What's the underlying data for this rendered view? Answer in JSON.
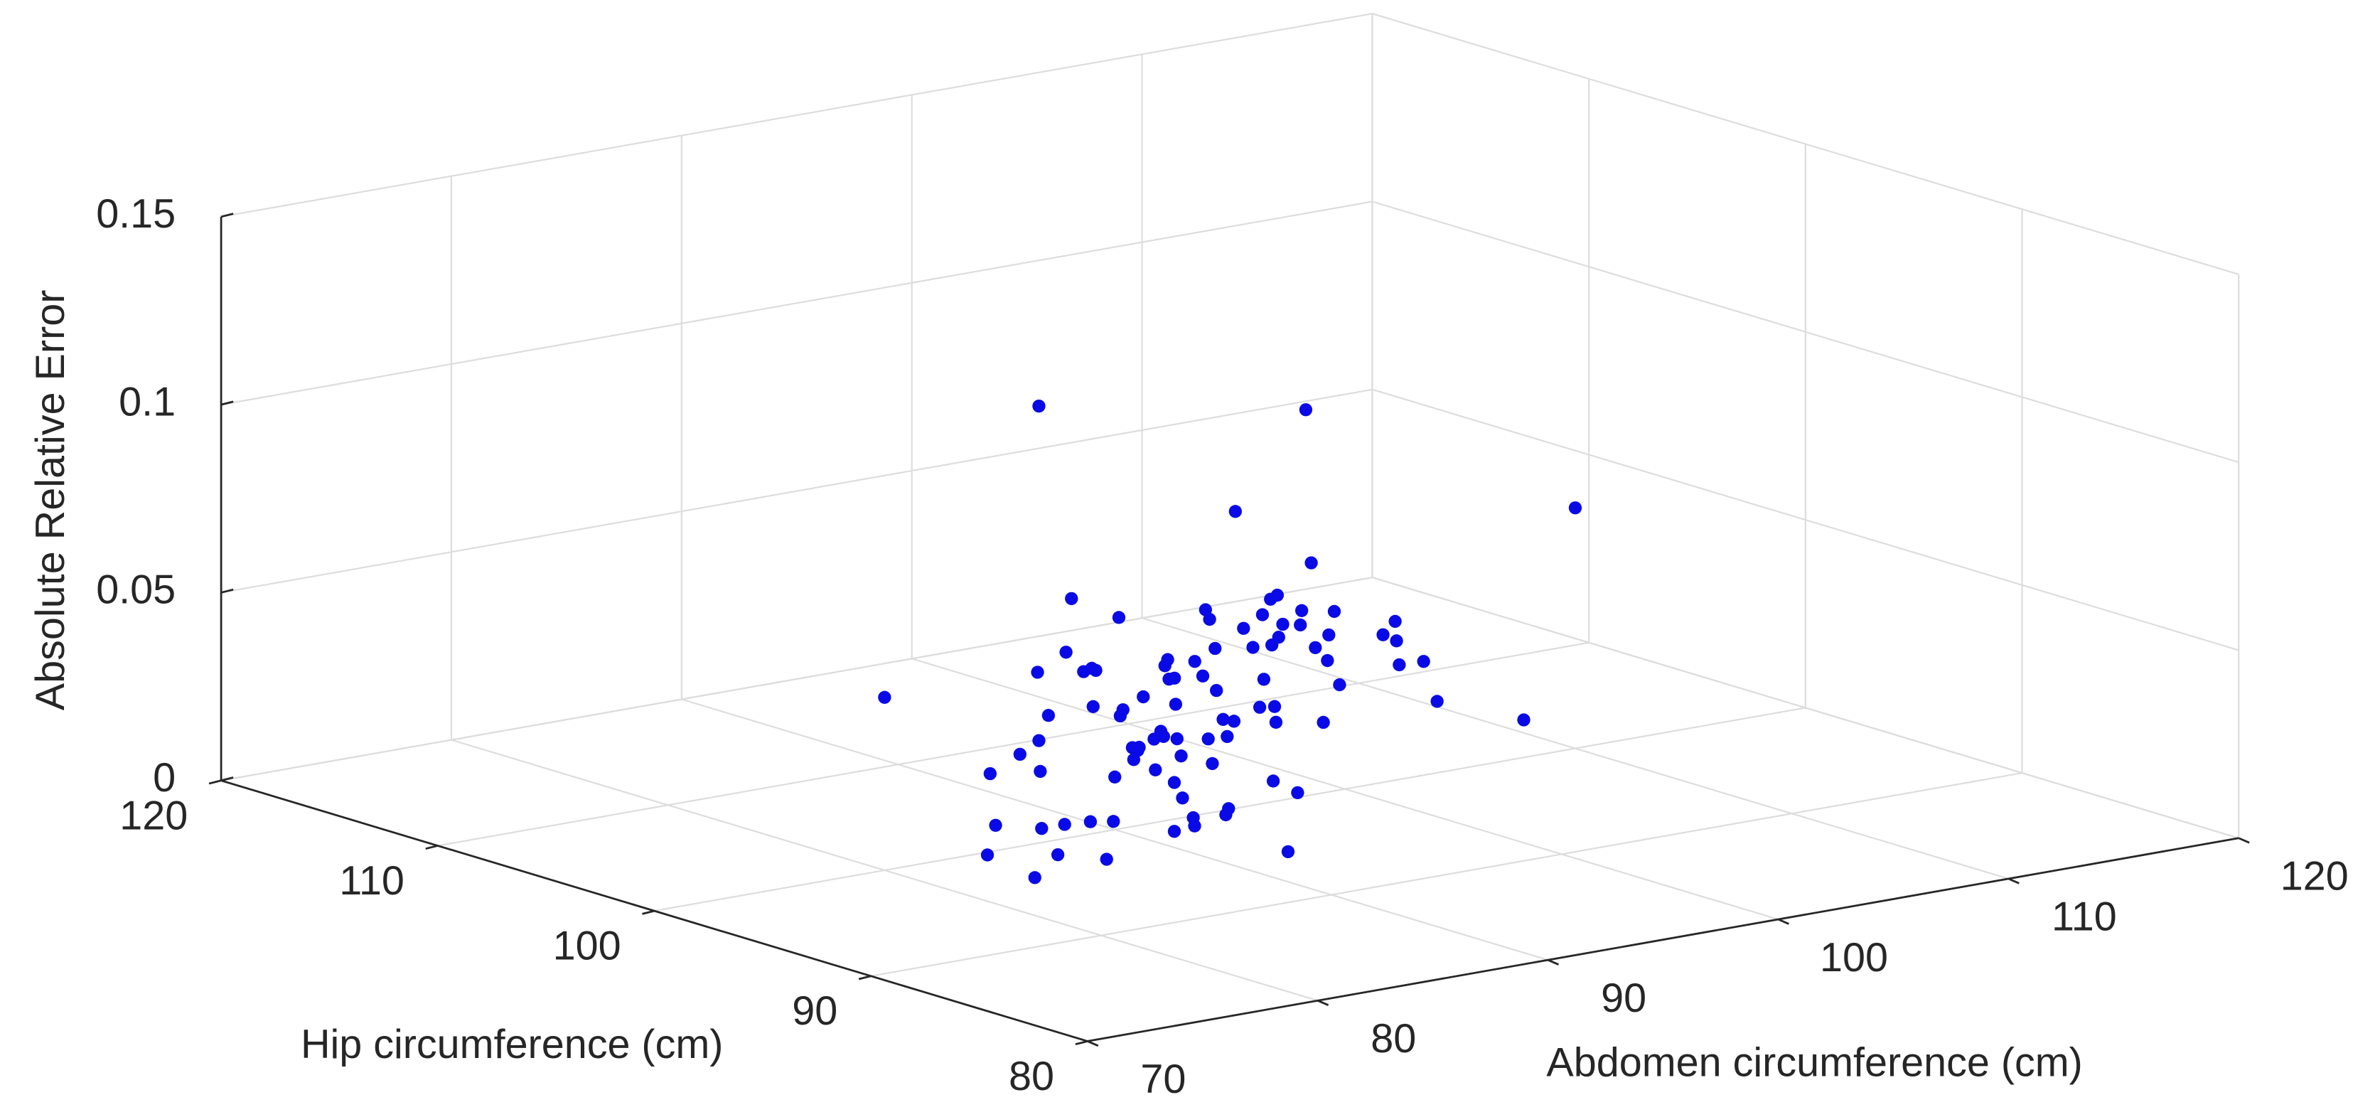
{
  "chart_data": {
    "type": "scatter3d",
    "xlabel": "Abdomen circumference (cm)",
    "ylabel": "Hip circumference (cm)",
    "zlabel": "Absolute Relative Error",
    "color": "#0a0ae6",
    "grid": true,
    "xlim": [
      70,
      120
    ],
    "xticks": [
      70,
      80,
      90,
      100,
      110,
      120
    ],
    "ylim": [
      80,
      120
    ],
    "yticks": [
      80,
      90,
      100,
      110,
      120
    ],
    "zlim": [
      0,
      0.15
    ],
    "zticks": [
      0,
      0.05,
      0.1,
      0.15
    ],
    "x": [
      85,
      88,
      90,
      92,
      94,
      96,
      98,
      100,
      102,
      104,
      87,
      89,
      91,
      93,
      95,
      97,
      99,
      101,
      103,
      105,
      80,
      82,
      84,
      86,
      88,
      90,
      92,
      94,
      96,
      98,
      83,
      86,
      89,
      92,
      95,
      98,
      101,
      104,
      107,
      110,
      78,
      81,
      84,
      87,
      90,
      93,
      96,
      99,
      102,
      105,
      91,
      93,
      95,
      89,
      87,
      97,
      99,
      85,
      84,
      100,
      106,
      108,
      112,
      76,
      79,
      94,
      92,
      90,
      88,
      86,
      95,
      97,
      93,
      91,
      101,
      103,
      98,
      96,
      94,
      92,
      82,
      84,
      88,
      90,
      100,
      104,
      108,
      110,
      83,
      96,
      82,
      110,
      103,
      80,
      104
    ],
    "y": [
      97,
      96,
      101,
      99,
      104,
      100,
      103,
      106,
      105,
      108,
      95,
      99,
      98,
      103,
      101,
      105,
      102,
      107,
      104,
      110,
      92,
      95,
      94,
      98,
      97,
      100,
      103,
      99,
      102,
      106,
      96,
      93,
      100,
      97,
      104,
      101,
      108,
      105,
      109,
      112,
      93,
      94,
      97,
      96,
      102,
      98,
      106,
      101,
      110,
      103,
      100,
      96,
      98,
      102,
      94,
      99,
      104,
      91,
      98,
      101,
      104,
      106,
      111,
      91,
      92,
      97,
      101,
      95,
      99,
      93,
      103,
      100,
      99,
      97,
      105,
      107,
      104,
      96,
      102,
      100,
      97,
      90,
      95,
      92,
      102,
      100,
      109,
      107,
      94,
      99,
      95,
      100,
      105,
      100,
      96
    ],
    "z": [
      0.012,
      0.025,
      0.031,
      0.008,
      0.019,
      0.042,
      0.015,
      0.027,
      0.033,
      0.011,
      0.036,
      0.005,
      0.022,
      0.048,
      0.017,
      0.029,
      0.038,
      0.013,
      0.024,
      0.02,
      0.018,
      0.041,
      0.009,
      0.055,
      0.026,
      0.014,
      0.035,
      0.003,
      0.046,
      0.021,
      0.03,
      0.016,
      0.044,
      0.007,
      0.023,
      0.052,
      0.019,
      0.028,
      0.037,
      0.006,
      0.04,
      0.062,
      0.012,
      0.032,
      0.058,
      0.025,
      0.015,
      0.043,
      0.01,
      0.034,
      0.02,
      0.065,
      0.011,
      0.028,
      0.047,
      0.004,
      0.068,
      0.022,
      0.03,
      0.016,
      0.026,
      0.014,
      0.009,
      0.024,
      0.013,
      0.05,
      0.018,
      0.038,
      0.006,
      0.029,
      0.033,
      0.021,
      0.057,
      0.045,
      0.012,
      0.031,
      0.002,
      0.039,
      0.017,
      0.024,
      0.015,
      0.027,
      0.035,
      0.008,
      0.044,
      0.019,
      0.023,
      0.011,
      0.06,
      0.028,
      0.13,
      0.064,
      0.089,
      0.046,
      0.021
    ]
  }
}
